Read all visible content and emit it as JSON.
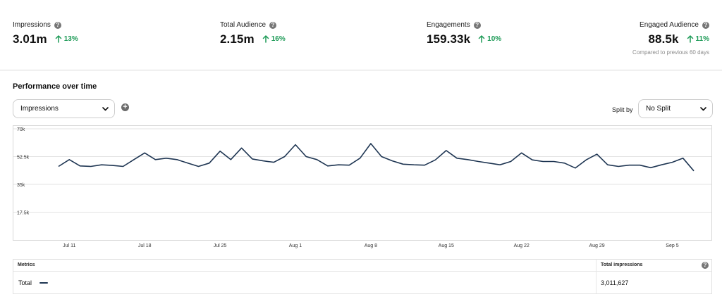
{
  "kpis": [
    {
      "label": "Impressions",
      "value": "3.01m",
      "change": "13%"
    },
    {
      "label": "Total Audience",
      "value": "2.15m",
      "change": "16%"
    },
    {
      "label": "Engagements",
      "value": "159.33k",
      "change": "10%"
    },
    {
      "label": "Engaged Audience",
      "value": "88.5k",
      "change": "11%"
    }
  ],
  "kpi_footnote": "Compared to previous 60 days",
  "performance": {
    "title": "Performance over time",
    "metric_select": {
      "value": "Impressions"
    },
    "split_label": "Split by",
    "split_select": {
      "value": "No Split"
    }
  },
  "colors": {
    "line": "#1e3552",
    "positive": "#1c9a56",
    "grid": "#e3e3e3"
  },
  "icons": {
    "help": "help-circle-icon",
    "change": "arrow-up-icon",
    "add": "add-circle-icon",
    "dropdown": "chevron-down-icon"
  },
  "chart_data": {
    "type": "line",
    "ylim": [
      0,
      70000
    ],
    "y_ticks": [
      17500,
      35000,
      52500,
      70000
    ],
    "y_tick_labels": [
      "17.5k",
      "35k",
      "52.5k",
      "70k"
    ],
    "x_tick_labels": [
      "Jul 11",
      "Jul 18",
      "Jul 25",
      "Aug 1",
      "Aug 8",
      "Aug 15",
      "Aug 22",
      "Aug 29",
      "Sep 5"
    ],
    "x_tick_index": [
      1,
      8,
      15,
      22,
      29,
      36,
      43,
      50,
      57
    ],
    "grid": true,
    "series": [
      {
        "values": [
          46300,
          50600,
          46600,
          46300,
          47300,
          46900,
          46300,
          50600,
          54800,
          50600,
          51500,
          50600,
          48400,
          46300,
          48400,
          55900,
          50600,
          57900,
          51000,
          49800,
          48900,
          52500,
          60000,
          52500,
          50600,
          46600,
          47300,
          47100,
          51500,
          60700,
          52500,
          49800,
          47700,
          47300,
          47100,
          50400,
          56300,
          51500,
          50600,
          49400,
          48400,
          47300,
          49400,
          54800,
          50400,
          49400,
          49400,
          48400,
          45300,
          50400,
          54000,
          47300,
          46300,
          47100,
          47100,
          45500,
          47300,
          48900,
          51500,
          43500
        ]
      }
    ]
  },
  "metrics_table": {
    "header_metrics": "Metrics",
    "header_total": "Total impressions",
    "row_label": "Total",
    "row_value": "3,011,627"
  }
}
